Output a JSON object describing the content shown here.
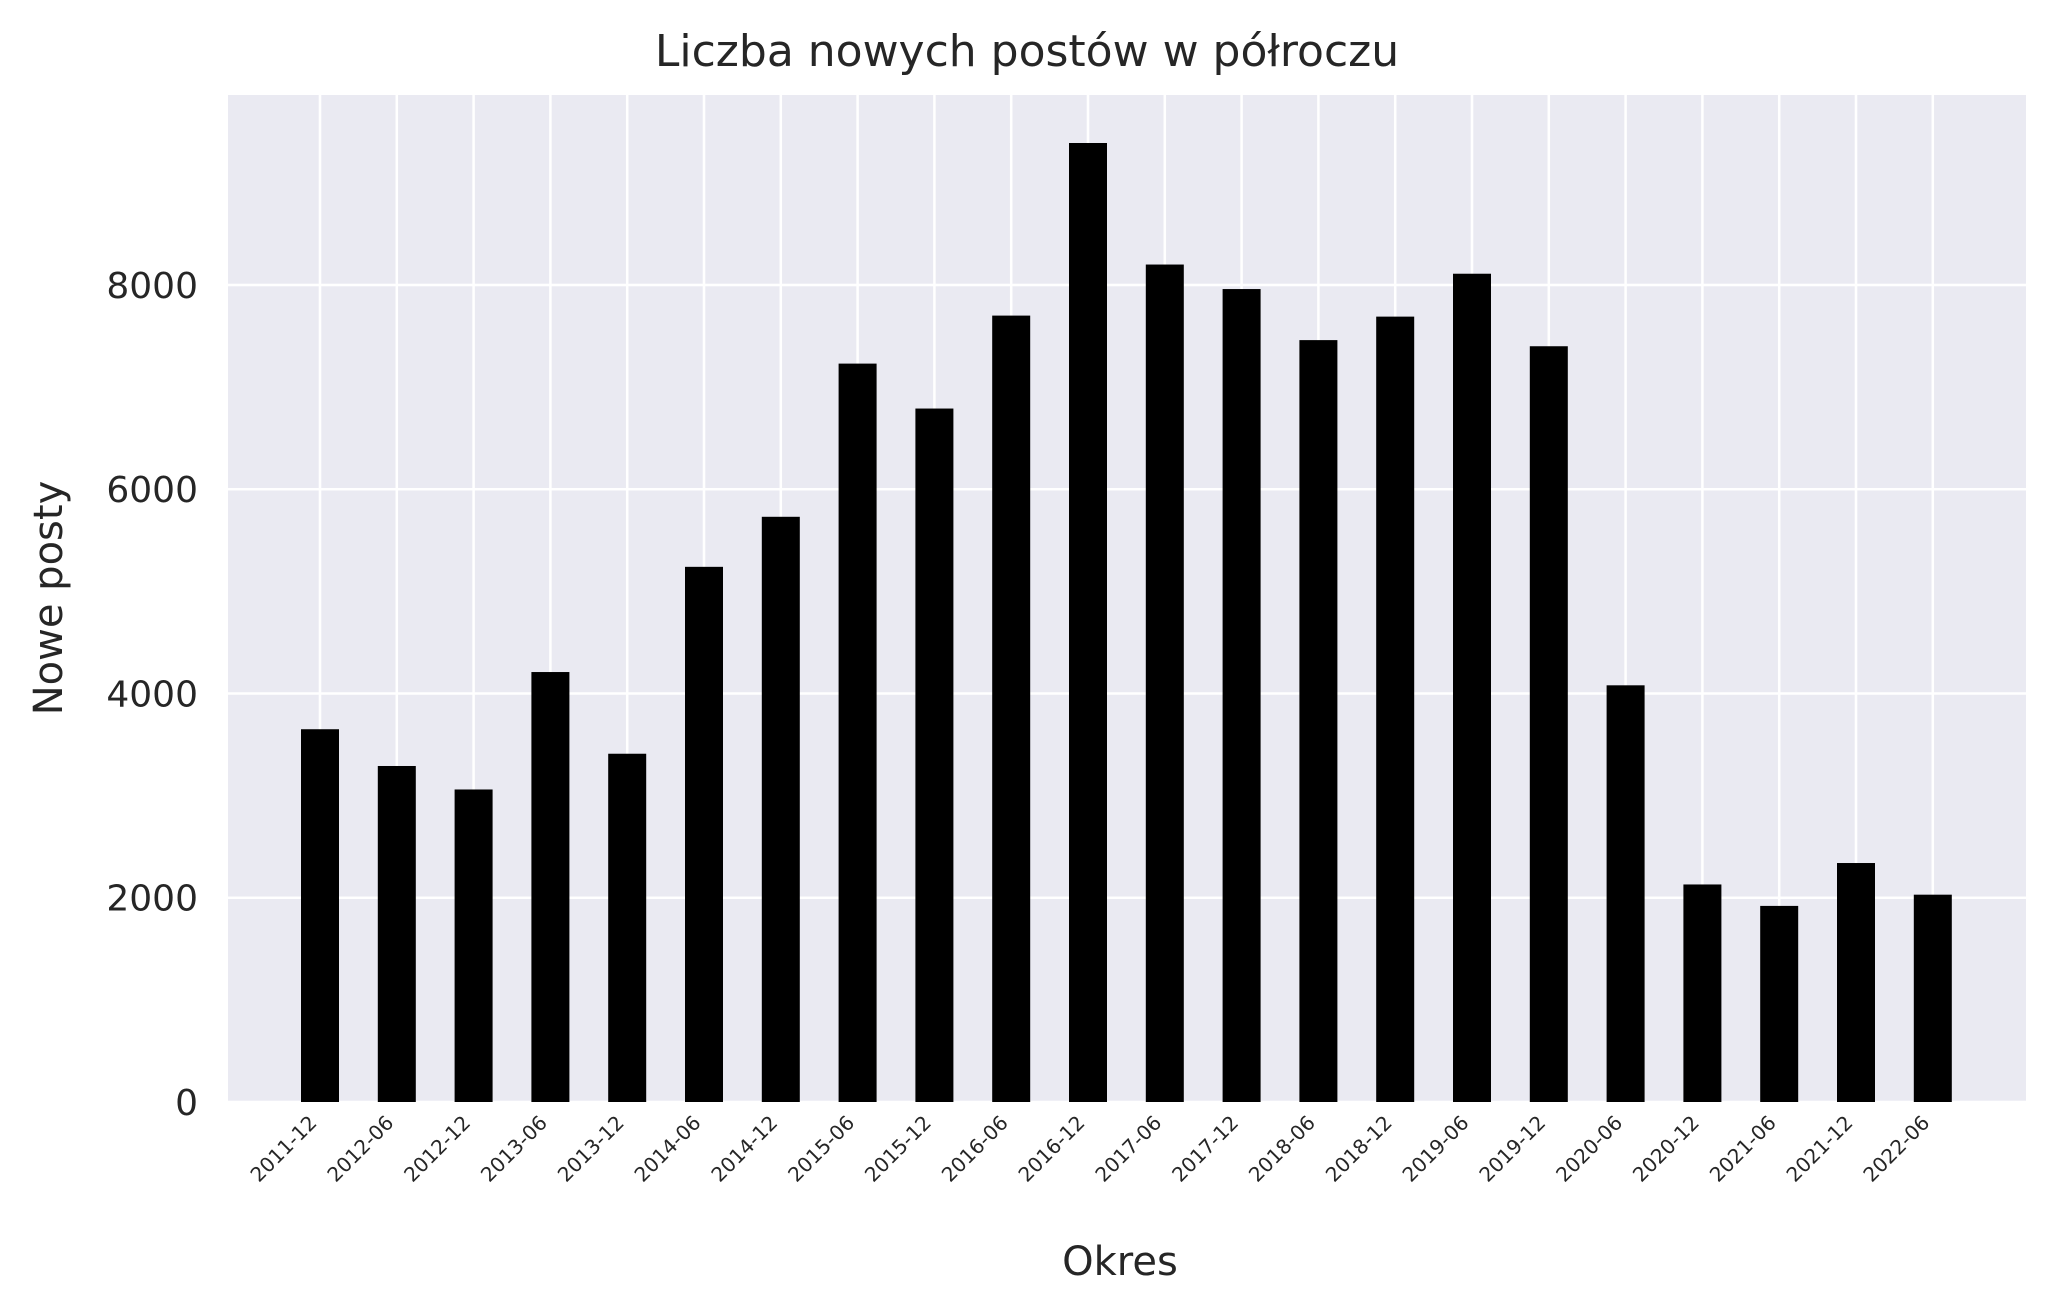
{
  "chart_data": {
    "type": "bar",
    "title": "Liczba nowych postów w półroczu",
    "xlabel": "Okres",
    "ylabel": "Nowe posty",
    "categories": [
      "2011-12",
      "2012-06",
      "2012-12",
      "2013-06",
      "2013-12",
      "2014-06",
      "2014-12",
      "2015-06",
      "2015-12",
      "2016-06",
      "2016-12",
      "2017-06",
      "2017-12",
      "2018-06",
      "2018-12",
      "2019-06",
      "2019-12",
      "2020-06",
      "2020-12",
      "2021-06",
      "2021-12",
      "2022-06"
    ],
    "values": [
      3650,
      3290,
      3060,
      4210,
      3410,
      5240,
      5730,
      7230,
      6790,
      7700,
      9390,
      8200,
      7960,
      7460,
      7690,
      8110,
      7400,
      4080,
      2130,
      1920,
      2340,
      2030
    ],
    "ylim": [
      0,
      9860
    ],
    "yticks": [
      0,
      2000,
      4000,
      6000,
      8000
    ],
    "grid": true,
    "bar_color": "#000000",
    "background_color": "#eaeaf2",
    "grid_color": "#ffffff"
  }
}
